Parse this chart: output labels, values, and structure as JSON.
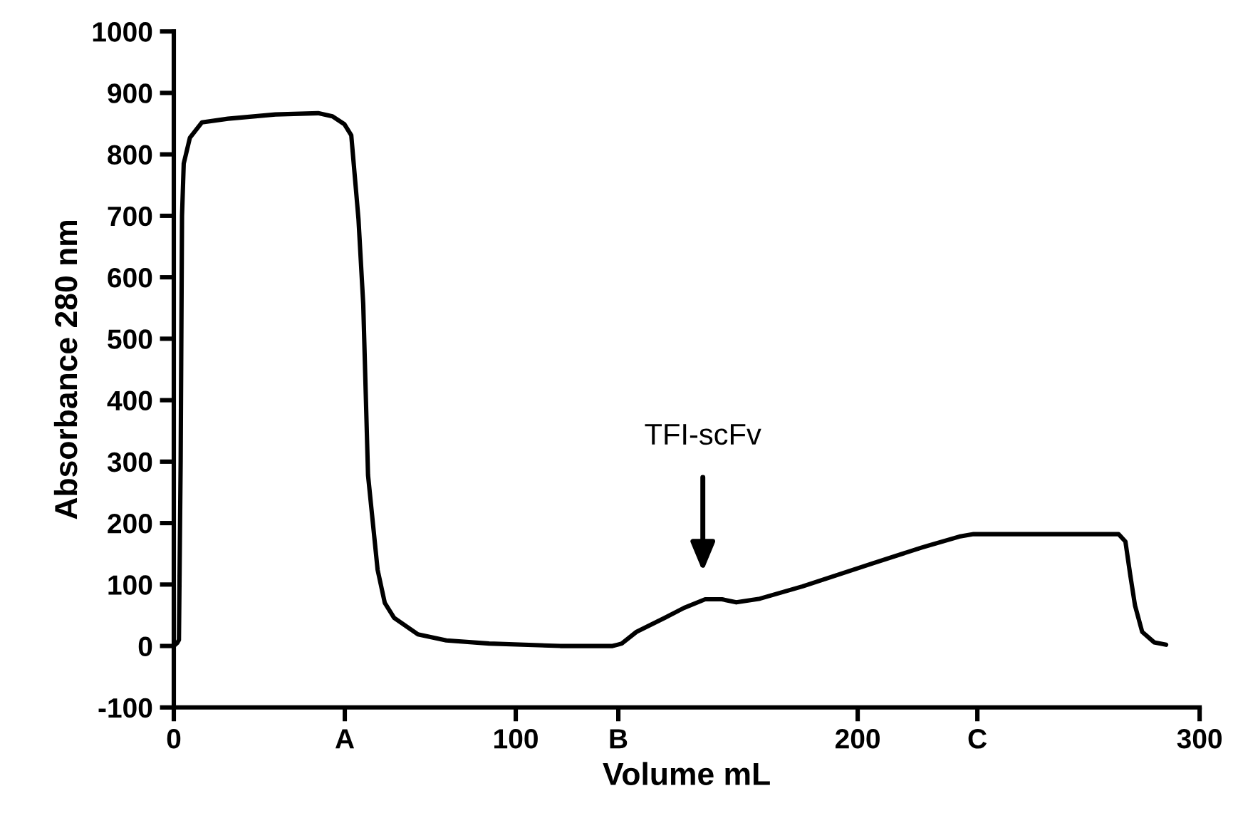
{
  "chart_data": {
    "type": "line",
    "xlabel": "Volume mL",
    "ylabel": "Absorbance 280 nm",
    "xlim": [
      0,
      300
    ],
    "ylim": [
      -100,
      1000
    ],
    "xticks": [
      0,
      {
        "value": 50,
        "label": "A"
      },
      100,
      {
        "value": 130,
        "label": "B"
      },
      200,
      {
        "value": 235,
        "label": "C"
      },
      300
    ],
    "yticks": [
      -100,
      0,
      100,
      200,
      300,
      400,
      500,
      600,
      700,
      800,
      900,
      1000
    ],
    "grid": false,
    "legend": false,
    "marker": "none",
    "line_style": "solid",
    "annotations": [
      "TFI-scFv"
    ],
    "series": [
      {
        "color": "#000000",
        "x": [
          0,
          1,
          1.5,
          2,
          2.4,
          2.9,
          4.7,
          8.2,
          15.8,
          29.7,
          42.2,
          46.4,
          49.9,
          51.9,
          54,
          55.4,
          56.8,
          58.2,
          59.6,
          61.7,
          64.4,
          71.4,
          79.7,
          92.2,
          113,
          128.3,
          129.7,
          131,
          135.3,
          143.6,
          149.2,
          155.4,
          160.3,
          164.5,
          171.4,
          183.9,
          204.7,
          218.6,
          229.7,
          233.9,
          276.3,
          278.3,
          279.7,
          281.1,
          283.2,
          286.7,
          290.2
        ],
        "values": [
          0,
          5,
          10,
          300,
          700,
          785,
          827,
          852,
          858,
          865,
          867,
          862,
          849,
          831,
          695,
          556,
          278,
          201,
          124,
          70,
          46,
          19,
          9,
          4,
          0,
          0,
          2,
          4,
          23,
          46,
          62,
          76,
          76,
          71,
          77,
          97,
          135,
          160,
          178,
          182,
          182,
          170,
          116,
          66,
          23,
          6,
          2
        ]
      }
    ]
  }
}
